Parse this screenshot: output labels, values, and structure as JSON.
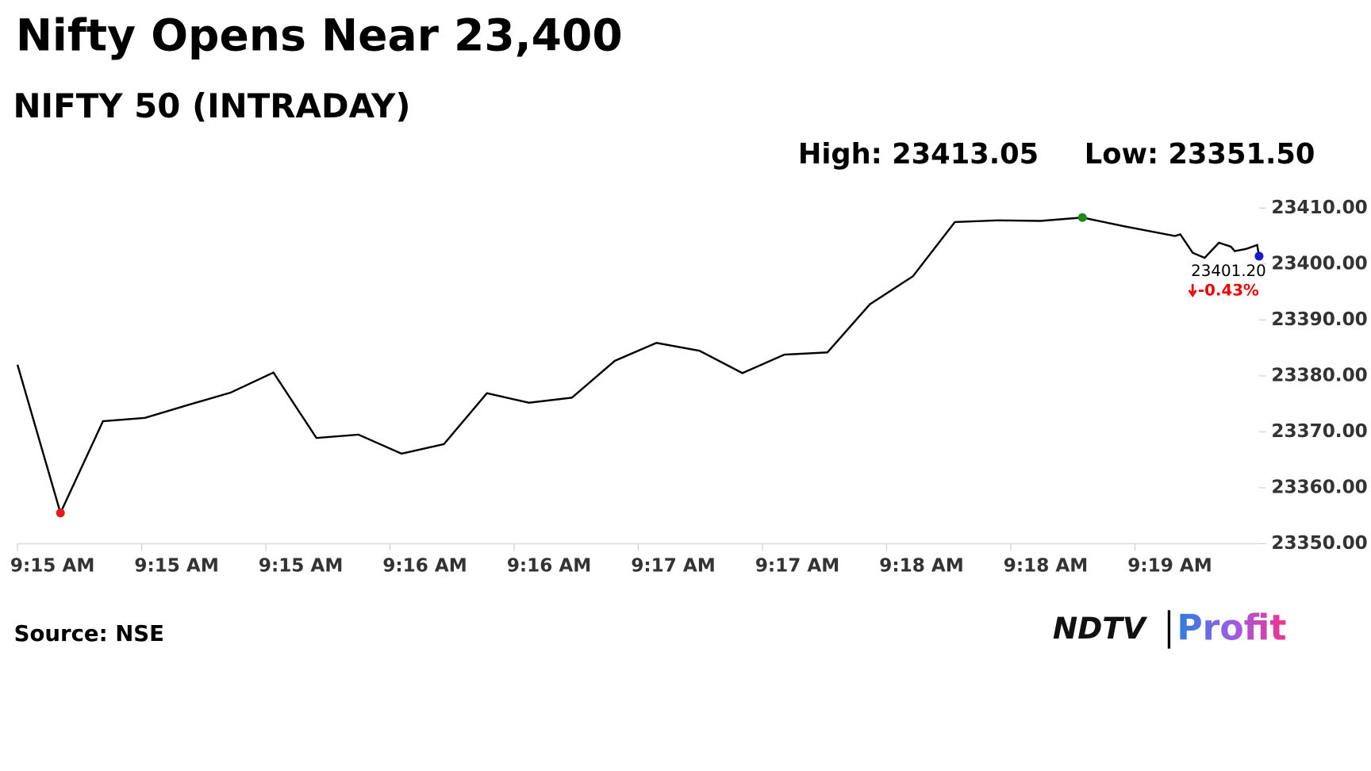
{
  "chart_data": {
    "type": "line",
    "title": "Nifty Opens Near 23,400",
    "subtitle": "NIFTY 50 (INTRADAY)",
    "high_label": "High: 23413.05",
    "low_label": "Low: 23351.50",
    "last_price": "23401.20",
    "change": "-0.43%",
    "source": "Source: NSE",
    "logo": {
      "brand": "NDTV",
      "product": "Profit"
    },
    "x": [
      0,
      9.0,
      17.9,
      26.7,
      35.7,
      44.6,
      53.6,
      62.6,
      71.4,
      80.4,
      89.3,
      98.3,
      107.1,
      116.1,
      125.1,
      133.8,
      142.8,
      151.8,
      160.6,
      169.6,
      178.5,
      187.5,
      196.3,
      205.3,
      214.2,
      223.0,
      232.0,
      242.4,
      243.5,
      246.1,
      248.6,
      251.6,
      254.1,
      254.9,
      257.3,
      259.6,
      260.0
    ],
    "series": [
      {
        "name": "NIFTY 50",
        "color": "#000000",
        "values": [
          23382.0,
          23355.5,
          23371.9,
          23372.5,
          23374.8,
          23377.0,
          23380.6,
          23368.9,
          23369.5,
          23366.1,
          23367.8,
          23376.9,
          23375.2,
          23376.1,
          23382.7,
          23385.9,
          23384.5,
          23380.5,
          23383.8,
          23384.2,
          23392.8,
          23397.8,
          23407.5,
          23407.8,
          23407.7,
          23408.3,
          23406.7,
          23405.0,
          23405.3,
          23402.0,
          23401.1,
          23403.8,
          23403.1,
          23402.3,
          23402.7,
          23403.4,
          23401.4
        ]
      }
    ],
    "markers": [
      {
        "index": 1,
        "color": "#e31b1b"
      },
      {
        "index": 25,
        "color": "#1a8a1a"
      },
      {
        "index": 36,
        "color": "#1a1acc"
      }
    ],
    "xlim": [
      0,
      260
    ],
    "xticks": [
      {
        "value": 0,
        "label": "9:15 AM"
      },
      {
        "value": 26,
        "label": "9:15 AM"
      },
      {
        "value": 52,
        "label": "9:15 AM"
      },
      {
        "value": 78,
        "label": "9:16 AM"
      },
      {
        "value": 104,
        "label": "9:16 AM"
      },
      {
        "value": 130,
        "label": "9:17 AM"
      },
      {
        "value": 156,
        "label": "9:17 AM"
      },
      {
        "value": 182,
        "label": "9:18 AM"
      },
      {
        "value": 208,
        "label": "9:18 AM"
      },
      {
        "value": 234,
        "label": "9:19 AM"
      }
    ],
    "ylim": [
      23350,
      23410
    ],
    "yticks": [
      {
        "value": 23350,
        "label": "23350.00"
      },
      {
        "value": 23360,
        "label": "23360.00"
      },
      {
        "value": 23370,
        "label": "23370.00"
      },
      {
        "value": 23380,
        "label": "23380.00"
      },
      {
        "value": 23390,
        "label": "23390.00"
      },
      {
        "value": 23400,
        "label": "23400.00"
      },
      {
        "value": 23410,
        "label": "23410.00"
      }
    ]
  }
}
